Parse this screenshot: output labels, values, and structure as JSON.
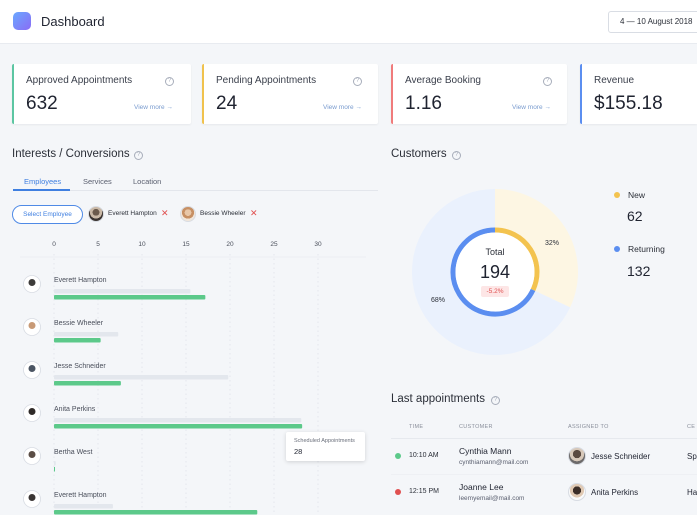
{
  "header": {
    "title": "Dashboard",
    "date_range": "4 — 10 August 2018"
  },
  "cards": [
    {
      "label": "Approved Appointments",
      "value": "632",
      "link": "View more →",
      "accent": "#5cc6a2"
    },
    {
      "label": "Pending Appointments",
      "value": "24",
      "link": "View more →",
      "accent": "#f0c24d"
    },
    {
      "label": "Average Booking",
      "value": "1.16",
      "link": "View more →",
      "accent": "#f07b7b"
    },
    {
      "label": "Revenue",
      "value": "$155.18",
      "link": "",
      "accent": "#5b8ef0"
    }
  ],
  "interests": {
    "title": "Interests / Conversions",
    "tabs": [
      "Employees",
      "Services",
      "Location"
    ],
    "select_label": "Select Employee",
    "chips": [
      "Everett Hampton",
      "Bessie Wheeler"
    ],
    "tooltip": {
      "label": "Scheduled Appointments",
      "value": "28"
    }
  },
  "chart_data": {
    "type": "bar",
    "orientation": "horizontal",
    "x_ticks": [
      "0",
      "5",
      "10",
      "15",
      "20",
      "25",
      "30"
    ],
    "xlim": [
      0,
      30
    ],
    "categories": [
      "Everett Hampton",
      "Bessie Wheeler",
      "Jesse Schneider",
      "Anita Perkins",
      "Bertha West",
      "Everett Hampton"
    ],
    "series": [
      {
        "color": "#e3e7ed",
        "values": [
          15.5,
          7.3,
          19.8,
          28.1,
          0.2,
          6.7
        ]
      },
      {
        "color": "#5cc98a",
        "values": [
          17.2,
          5.3,
          7.6,
          28.2,
          0,
          23.1
        ]
      }
    ],
    "grid": true
  },
  "customers": {
    "title": "Customers",
    "total_label": "Total",
    "total": "194",
    "delta": "-5.2%",
    "segments": [
      {
        "name": "New",
        "value": "62",
        "percent_label": "32%",
        "percent": 32,
        "color": "#f3c34f",
        "outer": "#fdf6e3"
      },
      {
        "name": "Returning",
        "value": "132",
        "percent_label": "68%",
        "percent": 68,
        "color": "#5b8ef0",
        "outer": "#eaf1fd"
      }
    ]
  },
  "appointments": {
    "title": "Last appointments",
    "columns": [
      "TIME",
      "CUSTOMER",
      "ASSIGNED TO",
      "CE"
    ],
    "rows": [
      {
        "time": "10:10 AM",
        "status_color": "#5cc98a",
        "customer": "Cynthia Mann",
        "email": "cynthiamann@mail.com",
        "assigned": "Jesse Schneider",
        "extra": "Sp"
      },
      {
        "time": "12:15 PM",
        "status_color": "#e05050",
        "customer": "Joanne Lee",
        "email": "leemyemail@mail.com",
        "assigned": "Anita Perkins",
        "extra": "Ha"
      }
    ]
  }
}
